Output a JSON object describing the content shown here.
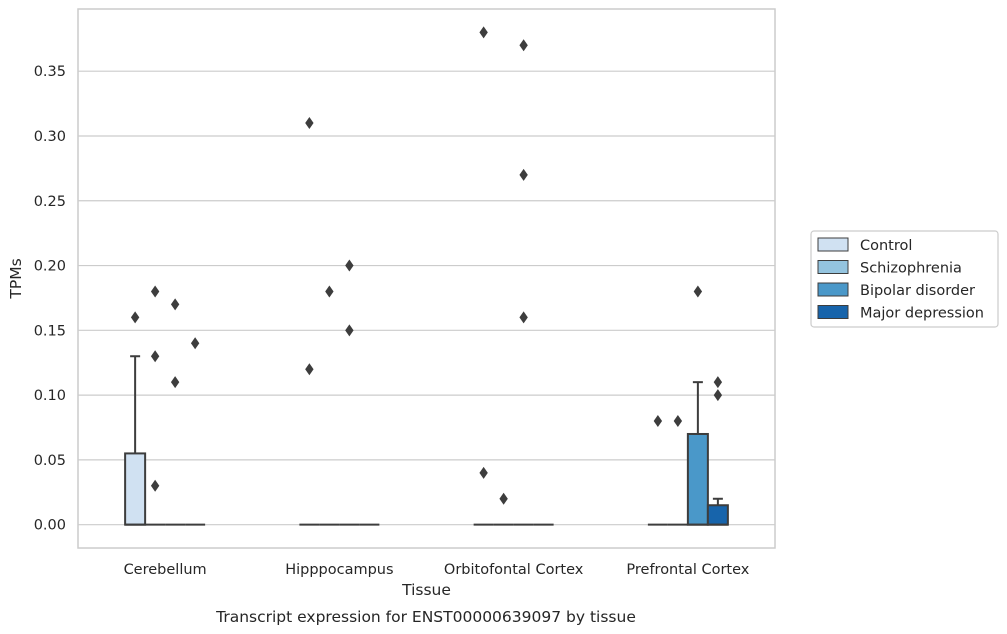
{
  "chart_data": {
    "type": "box",
    "title": "",
    "caption": "Transcript expression for ENST00000639097 by tissue",
    "xlabel": "Tissue",
    "ylabel": "TPMs",
    "ylim": [
      -0.018,
      0.398
    ],
    "yticks": [
      0.0,
      0.05,
      0.1,
      0.15,
      0.2,
      0.25,
      0.3,
      0.35
    ],
    "ytick_labels": [
      "0.00",
      "0.05",
      "0.10",
      "0.15",
      "0.20",
      "0.25",
      "0.30",
      "0.35"
    ],
    "grid": "horizontal",
    "legend_position": "right",
    "categories": [
      "Cerebellum",
      "Hipppocampus",
      "Orbitofontal Cortex",
      "Prefrontal Cortex"
    ],
    "series": [
      {
        "name": "Control",
        "color": "#d0e1f2",
        "boxes": [
          {
            "q1": 0.0,
            "median": 0.0,
            "q3": 0.055,
            "whisker_low": 0.0,
            "whisker_high": 0.13,
            "outliers": [
              0.16
            ]
          },
          {
            "q1": 0.0,
            "median": 0.0,
            "q3": 0.0,
            "whisker_low": 0.0,
            "whisker_high": 0.0,
            "outliers": [
              0.31,
              0.12
            ]
          },
          {
            "q1": 0.0,
            "median": 0.0,
            "q3": 0.0,
            "whisker_low": 0.0,
            "whisker_high": 0.0,
            "outliers": [
              0.38,
              0.04
            ]
          },
          {
            "q1": 0.0,
            "median": 0.0,
            "q3": 0.0,
            "whisker_low": 0.0,
            "whisker_high": 0.0,
            "outliers": [
              0.08
            ]
          }
        ]
      },
      {
        "name": "Schizophrenia",
        "color": "#94c4df",
        "boxes": [
          {
            "q1": 0.0,
            "median": 0.0,
            "q3": 0.0,
            "whisker_low": 0.0,
            "whisker_high": 0.0,
            "outliers": [
              0.18,
              0.13,
              0.03
            ]
          },
          {
            "q1": 0.0,
            "median": 0.0,
            "q3": 0.0,
            "whisker_low": 0.0,
            "whisker_high": 0.0,
            "outliers": [
              0.18
            ]
          },
          {
            "q1": 0.0,
            "median": 0.0,
            "q3": 0.0,
            "whisker_low": 0.0,
            "whisker_high": 0.0,
            "outliers": [
              0.02
            ]
          },
          {
            "q1": 0.0,
            "median": 0.0,
            "q3": 0.0,
            "whisker_low": 0.0,
            "whisker_high": 0.0,
            "outliers": [
              0.08
            ]
          }
        ]
      },
      {
        "name": "Bipolar disorder",
        "color": "#4a98c9",
        "boxes": [
          {
            "q1": 0.0,
            "median": 0.0,
            "q3": 0.0,
            "whisker_low": 0.0,
            "whisker_high": 0.0,
            "outliers": [
              0.17,
              0.11
            ]
          },
          {
            "q1": 0.0,
            "median": 0.0,
            "q3": 0.0,
            "whisker_low": 0.0,
            "whisker_high": 0.0,
            "outliers": [
              0.2,
              0.15
            ]
          },
          {
            "q1": 0.0,
            "median": 0.0,
            "q3": 0.0,
            "whisker_low": 0.0,
            "whisker_high": 0.0,
            "outliers": [
              0.37,
              0.27,
              0.16
            ]
          },
          {
            "q1": 0.0,
            "median": 0.0,
            "q3": 0.07,
            "whisker_low": 0.0,
            "whisker_high": 0.11,
            "outliers": [
              0.18
            ]
          }
        ]
      },
      {
        "name": "Major depression",
        "color": "#1764ab",
        "boxes": [
          {
            "q1": 0.0,
            "median": 0.0,
            "q3": 0.0,
            "whisker_low": 0.0,
            "whisker_high": 0.0,
            "outliers": [
              0.14
            ]
          },
          {
            "q1": 0.0,
            "median": 0.0,
            "q3": 0.0,
            "whisker_low": 0.0,
            "whisker_high": 0.0,
            "outliers": []
          },
          {
            "q1": 0.0,
            "median": 0.0,
            "q3": 0.0,
            "whisker_low": 0.0,
            "whisker_high": 0.0,
            "outliers": []
          },
          {
            "q1": 0.0,
            "median": 0.0,
            "q3": 0.015,
            "whisker_low": 0.0,
            "whisker_high": 0.02,
            "outliers": [
              0.11,
              0.1
            ]
          }
        ]
      }
    ],
    "colors": {
      "grid": "#cccccc",
      "spine": "#cccccc",
      "box_edge": "#3d3d3d",
      "legend_border": "#cccccc"
    }
  }
}
